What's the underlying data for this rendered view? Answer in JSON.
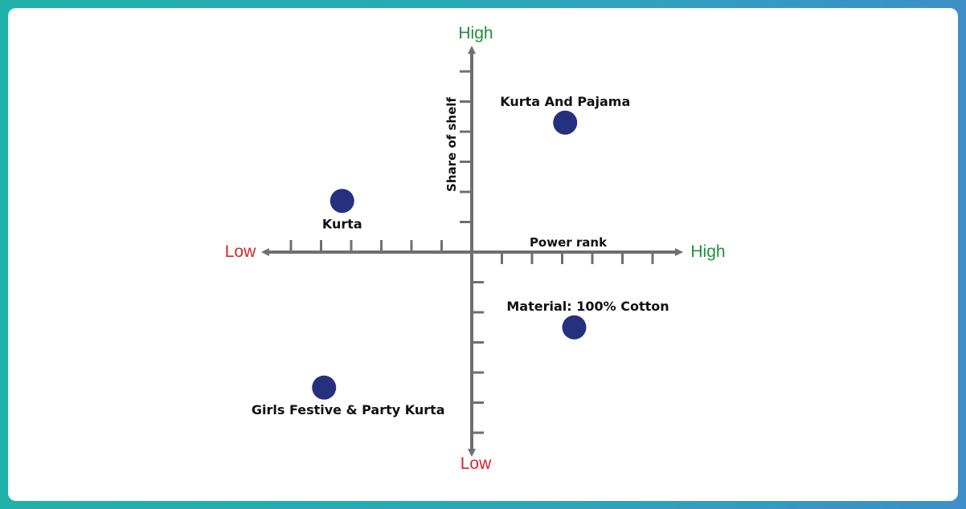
{
  "chart_data": {
    "type": "scatter",
    "xlabel": "Power rank",
    "ylabel": "Share of shelf",
    "x_low_label": "Low",
    "x_high_label": "High",
    "y_low_label": "Low",
    "y_high_label": "High",
    "xlim": [
      -7,
      7
    ],
    "ylim": [
      -7,
      7
    ],
    "grid": false,
    "colors": {
      "point": "#25317f",
      "axis": "#6f6f6f",
      "high": "#1f8f3a",
      "low": "#d42626"
    },
    "points": [
      {
        "label": "Kurta And Pajama",
        "x": 3.1,
        "y": 4.3
      },
      {
        "label": "Kurta",
        "x": -4.3,
        "y": 1.7
      },
      {
        "label": "Material: 100% Cotton",
        "x": 3.4,
        "y": -2.5
      },
      {
        "label": "Girls Festive & Party Kurta",
        "x": -4.9,
        "y": -4.5
      }
    ]
  }
}
